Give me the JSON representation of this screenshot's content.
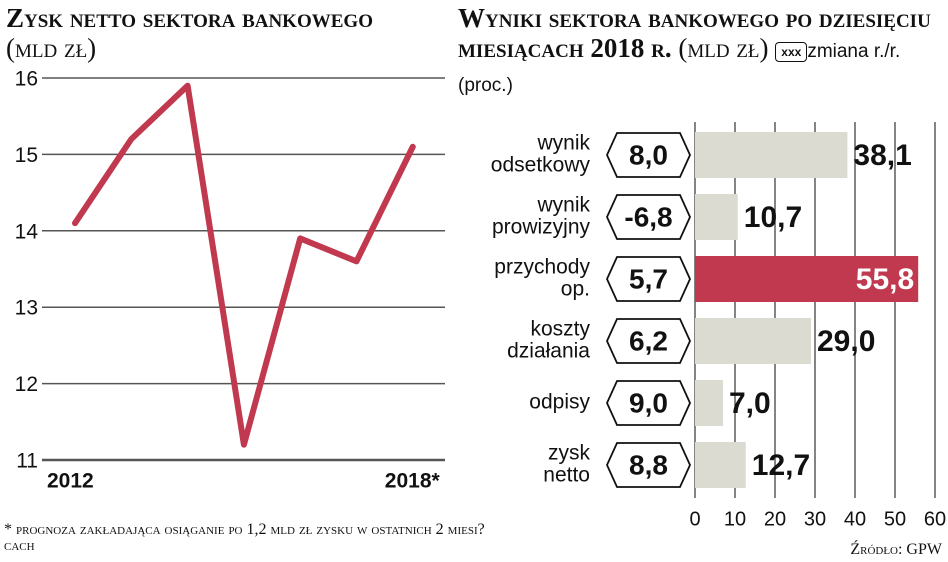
{
  "chart_data": [
    {
      "type": "line",
      "title": "Zysk netto sektora bankowego",
      "subtitle": "(mld zł)",
      "categories": [
        "2012",
        null,
        null,
        null,
        null,
        null,
        "2018*"
      ],
      "values": [
        14.1,
        15.2,
        15.9,
        11.2,
        13.9,
        13.6,
        15.1
      ],
      "color": "#c0394f",
      "ylim": [
        11,
        16
      ],
      "yticks": [
        11,
        12,
        13,
        14,
        15,
        16
      ],
      "grid": true,
      "note": "* prognoza zakładająca osiąganie po 1,2 mld zł zysku w ostatnich 2 miesi?cach"
    },
    {
      "type": "bar",
      "orientation": "horizontal",
      "title": "Wyniki sektora bankowego po dziesięciu miesiącach 2018 r.",
      "subtitle": "(mld zł)",
      "legend_symbol": "xxx",
      "legend_label": "zmiana r./r.(proc.)",
      "categories": [
        [
          "wynik",
          "odsetkowy"
        ],
        [
          "wynik",
          "prowizyjny"
        ],
        [
          "przychody",
          "op."
        ],
        [
          "koszty",
          "działania"
        ],
        [
          "odpisy"
        ],
        [
          "zysk",
          "netto"
        ]
      ],
      "values": [
        38.1,
        10.7,
        55.8,
        29.0,
        7.0,
        12.7
      ],
      "value_labels": [
        "38,1",
        "10,7",
        "55,8",
        "29,0",
        "7,0",
        "12,7"
      ],
      "colors": [
        "#dcdbd2",
        "#dcdbd2",
        "#c0394f",
        "#dcdbd2",
        "#dcdbd2",
        "#dcdbd2"
      ],
      "changes": [
        8.0,
        -6.8,
        5.7,
        6.2,
        9.0,
        8.8
      ],
      "change_labels": [
        "8,0",
        "-6,8",
        "5,7",
        "6,2",
        "9,0",
        "8,8"
      ],
      "xlim": [
        0,
        60
      ],
      "xticks": [
        0,
        10,
        20,
        30,
        40,
        50,
        60
      ],
      "grid": true,
      "source": "Źródło: GPW"
    }
  ]
}
